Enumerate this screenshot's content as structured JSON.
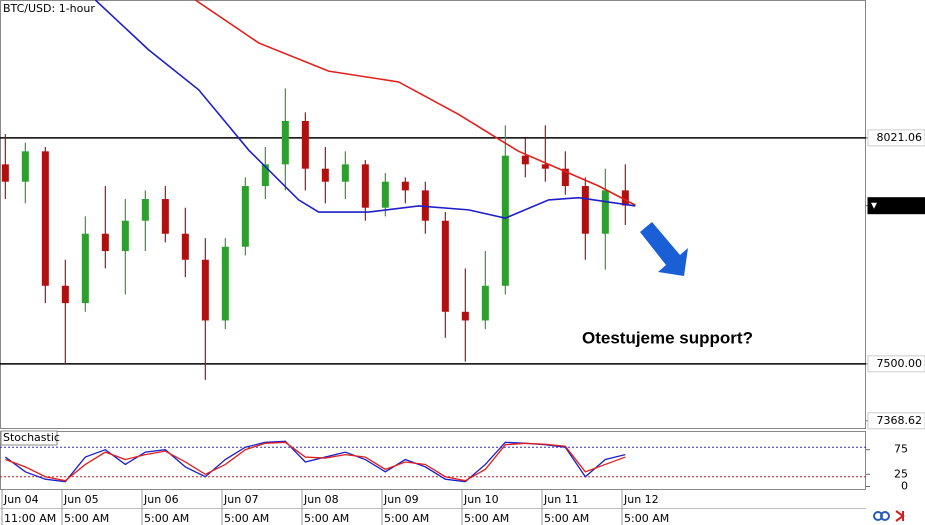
{
  "chart_data": [
    {
      "type": "candlestick",
      "title": "BTC/USD: 1-hour",
      "x": [
        12,
        18,
        24,
        30,
        36,
        42,
        48,
        54,
        60,
        66,
        72,
        78,
        84,
        90,
        96,
        102,
        108,
        114,
        120,
        126,
        132,
        138,
        144,
        150,
        156,
        162,
        168,
        174,
        180,
        186,
        192,
        198
      ],
      "open": [
        7960,
        7920,
        7990,
        7680,
        7640,
        7800,
        7760,
        7830,
        7880,
        7800,
        7740,
        7600,
        7770,
        7910,
        7960,
        8060,
        7950,
        7920,
        7960,
        7860,
        7920,
        7900,
        7830,
        7620,
        7600,
        7680,
        7980,
        7960,
        7950,
        7910,
        7800,
        7900
      ],
      "high": [
        8030,
        8010,
        8000,
        7740,
        7840,
        7910,
        7880,
        7900,
        7910,
        7860,
        7790,
        7790,
        7930,
        8000,
        8135,
        8080,
        8000,
        7990,
        7970,
        7940,
        7930,
        7920,
        7850,
        7720,
        7760,
        8050,
        8020,
        8050,
        7990,
        7930,
        7950,
        7960
      ],
      "low": [
        7880,
        7870,
        7640,
        7500,
        7620,
        7720,
        7660,
        7760,
        7780,
        7700,
        7463,
        7580,
        7750,
        7880,
        7900,
        7900,
        7870,
        7880,
        7830,
        7840,
        7870,
        7800,
        7560,
        7505,
        7580,
        7660,
        7930,
        7920,
        7890,
        7740,
        7717,
        7820
      ],
      "close": [
        7920,
        7990,
        7680,
        7640,
        7800,
        7760,
        7830,
        7880,
        7800,
        7740,
        7600,
        7770,
        7910,
        7960,
        8060,
        7950,
        7920,
        7960,
        7860,
        7920,
        7900,
        7830,
        7620,
        7600,
        7680,
        7980,
        7960,
        7950,
        7910,
        7800,
        7900,
        7865
      ],
      "up_color": "#2e9e2e",
      "down_color": "#b01010",
      "xlim": [
        10.4,
        270.2
      ],
      "ylim": [
        7352,
        8339
      ],
      "yticks": [
        8021.06,
        7864.66,
        {
          "value": 7500,
          "label": "7500.00"
        },
        7368.62
      ],
      "levels": [
        8021.06,
        7500
      ],
      "level_color": "#000000",
      "lines": [
        {
          "color": "#e0201c",
          "x": [
            69,
            88,
            109,
            130,
            148,
            166,
            181,
            190,
            201
          ],
          "values": [
            8339,
            8240,
            8175,
            8150,
            8075,
            7990,
            7940,
            7910,
            7866
          ]
        },
        {
          "color": "#1f1fc8",
          "x": [
            39,
            55,
            70,
            85,
            100,
            106,
            121,
            136,
            151,
            162,
            175,
            184,
            201
          ],
          "values": [
            8339,
            8224,
            8132,
            7993,
            7878,
            7850,
            7850,
            7864,
            7855,
            7836,
            7878,
            7883,
            7864
          ]
        }
      ],
      "annotation": "Otestujeme support?",
      "xticks": [
        {
          "value": 11,
          "label": "Jun 04"
        },
        {
          "value": 29,
          "label": "Jun 05"
        },
        {
          "value": 53,
          "label": "Jun 06"
        },
        {
          "value": 77,
          "label": "Jun 07"
        },
        {
          "value": 101,
          "label": "Jun 08"
        },
        {
          "value": 125,
          "label": "Jun 09"
        },
        {
          "value": 149,
          "label": "Jun 10"
        },
        {
          "value": 173,
          "label": "Jun 11"
        },
        {
          "value": 197,
          "label": "Jun 12"
        }
      ],
      "xtick_times": [
        "11:00 AM",
        "5:00 AM",
        "5:00 AM",
        "5:00 AM",
        "5:00 AM",
        "5:00 AM",
        "5:00 AM",
        "5:00 AM",
        "5:00 AM"
      ]
    },
    {
      "type": "line",
      "title": "Stochastic",
      "x": [
        12,
        18,
        24,
        30,
        36,
        42,
        48,
        54,
        60,
        66,
        72,
        78,
        84,
        90,
        96,
        102,
        108,
        114,
        120,
        126,
        132,
        138,
        144,
        150,
        156,
        162,
        168,
        174,
        180,
        186,
        192,
        198
      ],
      "series": [
        {
          "color": "#1f1fc8",
          "values": [
            60,
            30,
            15,
            10,
            60,
            75,
            45,
            70,
            75,
            40,
            20,
            55,
            80,
            90,
            92,
            50,
            60,
            70,
            55,
            30,
            55,
            40,
            15,
            10,
            45,
            90,
            88,
            85,
            80,
            20,
            55,
            65
          ]
        },
        {
          "color": "#e0201c",
          "values": [
            55,
            40,
            20,
            12,
            45,
            70,
            55,
            65,
            72,
            50,
            25,
            45,
            75,
            88,
            90,
            60,
            58,
            65,
            60,
            35,
            50,
            45,
            20,
            12,
            35,
            85,
            88,
            86,
            82,
            30,
            45,
            60
          ]
        }
      ],
      "levels": [
        {
          "value": 80,
          "color": "#3030c0"
        },
        {
          "value": 20,
          "color": "#d02020"
        }
      ],
      "ylim": [
        -7,
        111
      ],
      "yticks": [
        75,
        25,
        0
      ]
    }
  ]
}
